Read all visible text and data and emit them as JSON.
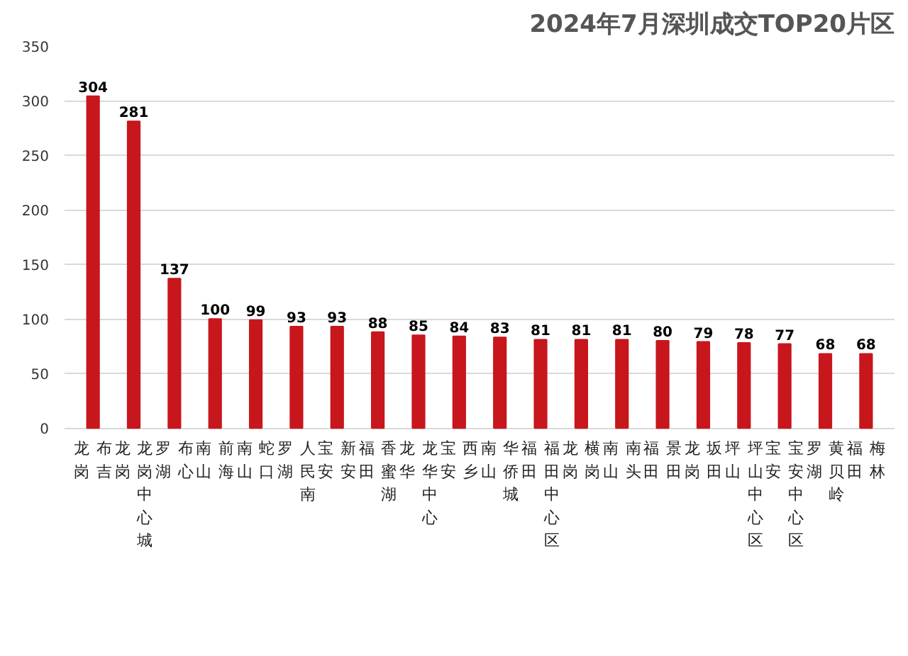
{
  "chart_data": {
    "type": "bar",
    "title": "2024年7月深圳成交TOP20片区",
    "categories": [
      "龙岗布吉",
      "龙岗龙岗中心城",
      "罗湖布心",
      "南山前海",
      "南山蛇口",
      "罗湖人民南",
      "宝安新安",
      "福田香蜜湖",
      "龙华龙华中心",
      "宝安西乡",
      "南山华侨城",
      "福田福田中心区",
      "龙岗横岗",
      "南山南头",
      "福田景田",
      "龙岗坂田",
      "坪山坪山中心区",
      "宝安宝安中心区",
      "罗湖黄贝岭",
      "福田梅林"
    ],
    "values": [
      304,
      281,
      137,
      100,
      99,
      93,
      93,
      88,
      85,
      84,
      83,
      81,
      81,
      81,
      80,
      79,
      78,
      77,
      68,
      68
    ],
    "color": "#c8161d",
    "data_labels": true,
    "ylim": [
      0,
      350
    ],
    "yticks": [
      0,
      50,
      100,
      150,
      200,
      250,
      300,
      350
    ],
    "grid": "y"
  }
}
